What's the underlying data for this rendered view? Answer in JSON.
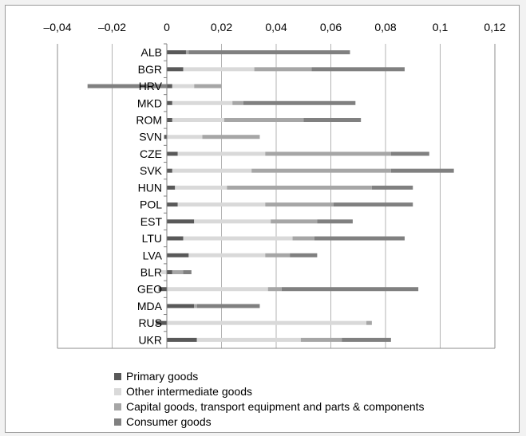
{
  "chart_data": {
    "type": "bar",
    "orientation": "horizontal",
    "stacked": true,
    "title": "",
    "xlabel": "",
    "ylabel": "",
    "xlim": [
      -0.04,
      0.12
    ],
    "x_ticks": [
      "–0,04",
      "–0,02",
      "0",
      "0,02",
      "0,04",
      "0,06",
      "0,08",
      "0,1",
      "0,12"
    ],
    "x_tick_values": [
      -0.04,
      -0.02,
      0,
      0.02,
      0.04,
      0.06,
      0.08,
      0.1,
      0.12
    ],
    "grid": true,
    "legend_position": "bottom",
    "categories": [
      "ALB",
      "BGR",
      "HRV",
      "MKD",
      "ROM",
      "SVN",
      "CZE",
      "SVK",
      "HUN",
      "POL",
      "EST",
      "LTU",
      "LVA",
      "BLR",
      "GEO",
      "MDA",
      "RUS",
      "UKR"
    ],
    "series": [
      {
        "name": "Primary goods",
        "color": "#595959",
        "values": [
          0.007,
          0.006,
          0.002,
          0.002,
          0.002,
          -0.001,
          0.004,
          0.002,
          0.003,
          0.004,
          0.01,
          0.006,
          0.008,
          0.002,
          -0.003,
          0.01,
          -0.004,
          0.011
        ]
      },
      {
        "name": "Other intermediate goods",
        "color": "#d9d9d9",
        "values": [
          0.0,
          0.026,
          0.008,
          0.022,
          0.019,
          0.013,
          0.032,
          0.029,
          0.019,
          0.032,
          0.028,
          0.04,
          0.028,
          -0.002,
          0.037,
          0.0,
          0.073,
          0.038
        ]
      },
      {
        "name": "Capital goods, transport equipment and parts & components",
        "color": "#a6a6a6",
        "values": [
          0.001,
          0.021,
          0.01,
          0.004,
          0.029,
          0.021,
          0.046,
          0.051,
          0.053,
          0.025,
          0.017,
          0.008,
          0.009,
          0.004,
          0.005,
          0.001,
          0.002,
          0.015
        ]
      },
      {
        "name": "Consumer goods",
        "color": "#808080",
        "values": [
          0.059,
          0.034,
          -0.029,
          0.041,
          0.021,
          0.0,
          0.014,
          0.023,
          0.015,
          0.029,
          0.013,
          0.033,
          0.01,
          0.003,
          0.05,
          0.023,
          0.0,
          0.018
        ]
      }
    ]
  }
}
